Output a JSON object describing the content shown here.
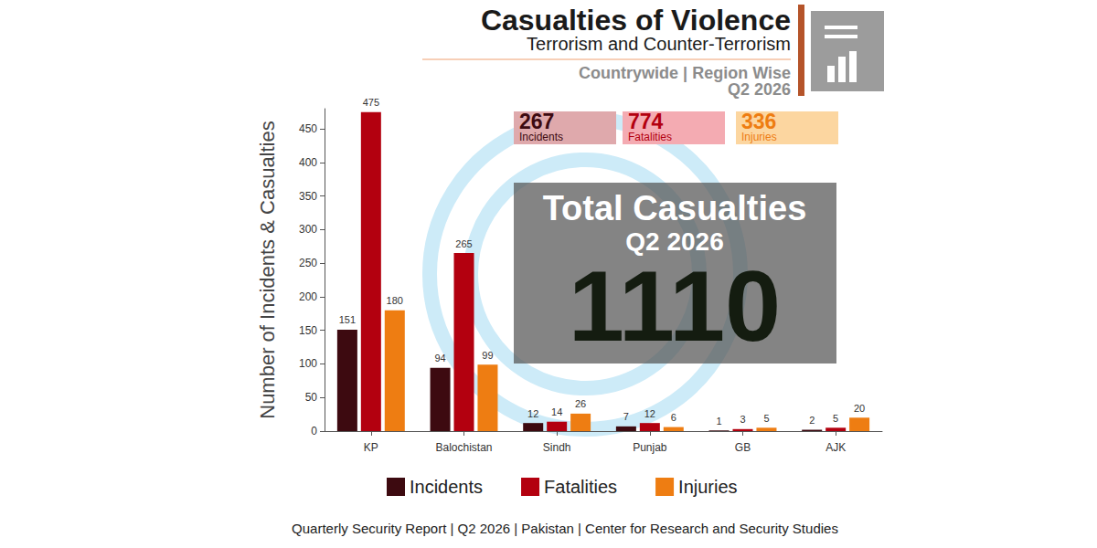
{
  "chart_data": {
    "type": "bar",
    "title": "Casualties of Violence",
    "subtitle": "Terrorism and Counter-Terrorism",
    "scope": "Countrywide | Region Wise",
    "period": "Q2 2026",
    "summary": [
      {
        "value": 267,
        "label": "Incidents"
      },
      {
        "value": 774,
        "label": "Fatalities"
      },
      {
        "value": 336,
        "label": "Injuries"
      }
    ],
    "total": {
      "title": "Total Casualties",
      "period": "Q2 2026",
      "value": 1110
    },
    "footer": "Quarterly Security Report | Q2 2026 | Pakistan | Center for Research and Security Studies",
    "y_label": "Number of Incidents & Casualties",
    "categories": [
      "KP",
      "Balochistan",
      "Sindh",
      "Punjab",
      "GB",
      "AJK"
    ],
    "series": [
      {
        "name": "Incidents",
        "color": "#3d0a10",
        "values": [
          151,
          94,
          12,
          7,
          1,
          2
        ]
      },
      {
        "name": "Fatalities",
        "color": "#b3000f",
        "values": [
          475,
          265,
          14,
          12,
          3,
          5
        ]
      },
      {
        "name": "Injuries",
        "color": "#ee7d12",
        "values": [
          180,
          99,
          26,
          6,
          5,
          20
        ]
      }
    ],
    "ylim": [
      0,
      480
    ],
    "yticks": [
      0,
      50,
      100,
      150,
      200,
      250,
      300,
      350,
      400,
      450
    ],
    "grid": false,
    "data_labels": true,
    "legend": "bottom"
  }
}
